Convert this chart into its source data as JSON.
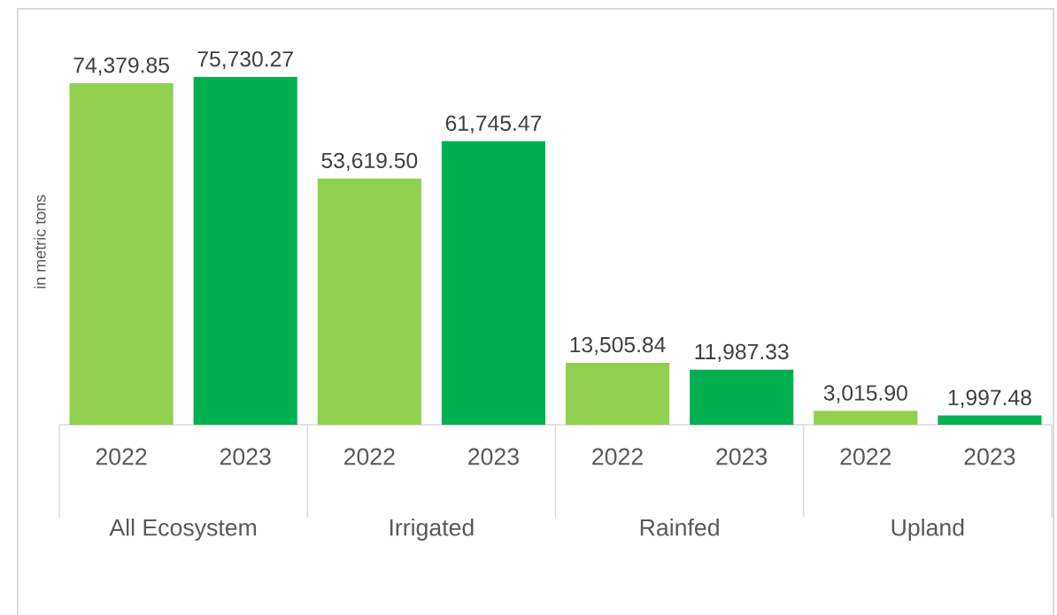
{
  "chart_data": {
    "type": "bar",
    "ylabel": "in metric tons",
    "categories": [
      "All Ecosystem",
      "Irrigated",
      "Rainfed",
      "Upland"
    ],
    "series": [
      {
        "name": "2022",
        "color": "#92d050",
        "values": [
          74379.85,
          53619.5,
          13505.84,
          3015.9
        ],
        "value_labels": [
          "74,379.85",
          "53,619.50",
          "13,505.84",
          "3,015.90"
        ]
      },
      {
        "name": "2023",
        "color": "#00b050",
        "values": [
          75730.27,
          61745.47,
          11987.33,
          1997.48
        ],
        "value_labels": [
          "75,730.27",
          "61,745.47",
          "11,987.33",
          "1,997.48"
        ]
      }
    ]
  }
}
